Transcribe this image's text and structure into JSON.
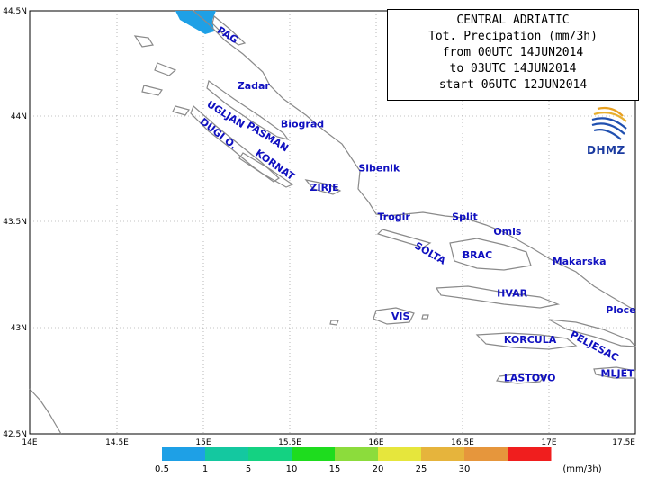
{
  "title": {
    "line1": "CENTRAL ADRIATIC",
    "line2": "Tot. Precipation (mm/3h)",
    "line3": "from 00UTC 14JUN2014",
    "line4": "to 03UTC 14JUN2014",
    "line5": "start 06UTC 12JUN2014"
  },
  "logo": {
    "text": "DHMZ"
  },
  "axes": {
    "x_ticks": [
      "14E",
      "14.5E",
      "15E",
      "15.5E",
      "16E",
      "16.5E",
      "17E",
      "17.5E"
    ],
    "y_ticks": [
      "44.5N",
      "44N",
      "43.5N",
      "43N",
      "42.5N"
    ]
  },
  "places": [
    {
      "name": "PAG",
      "lon": 15.08,
      "lat": 44.4
    },
    {
      "name": "Zadar",
      "lon": 15.2,
      "lat": 44.13
    },
    {
      "name": "UGLJAN",
      "lon": 15.02,
      "lat": 44.05
    },
    {
      "name": "PASMAN",
      "lon": 15.25,
      "lat": 43.95
    },
    {
      "name": "Biograd",
      "lon": 15.45,
      "lat": 43.95
    },
    {
      "name": "DUGI O.",
      "lon": 14.98,
      "lat": 43.97
    },
    {
      "name": "KORNAT",
      "lon": 15.3,
      "lat": 43.82
    },
    {
      "name": "Sibenik",
      "lon": 15.9,
      "lat": 43.74
    },
    {
      "name": "ZIRJE",
      "lon": 15.62,
      "lat": 43.65
    },
    {
      "name": "Trogir",
      "lon": 16.01,
      "lat": 43.51
    },
    {
      "name": "Split",
      "lon": 16.44,
      "lat": 43.51
    },
    {
      "name": "Omis",
      "lon": 16.68,
      "lat": 43.44
    },
    {
      "name": "SOLTA",
      "lon": 16.22,
      "lat": 43.38
    },
    {
      "name": "BRAC",
      "lon": 16.5,
      "lat": 43.33
    },
    {
      "name": "Makarska",
      "lon": 17.02,
      "lat": 43.3
    },
    {
      "name": "HVAR",
      "lon": 16.7,
      "lat": 43.15
    },
    {
      "name": "Ploce",
      "lon": 17.33,
      "lat": 43.07
    },
    {
      "name": "VIS",
      "lon": 16.09,
      "lat": 43.04
    },
    {
      "name": "PELJESAC",
      "lon": 17.12,
      "lat": 42.96
    },
    {
      "name": "KORCULA",
      "lon": 16.74,
      "lat": 42.93
    },
    {
      "name": "LASTOVO",
      "lon": 16.74,
      "lat": 42.75
    },
    {
      "name": "MLJET",
      "lon": 17.3,
      "lat": 42.77
    }
  ],
  "legend": {
    "unit": "(mm/3h)",
    "labels": [
      "0.5",
      "1",
      "5",
      "10",
      "15",
      "20",
      "25",
      "30"
    ],
    "colors": [
      "#1ea0e6",
      "#14c8a0",
      "#14d282",
      "#1edc1e",
      "#8cdc3c",
      "#e6e63c",
      "#e6b43c",
      "#e6963c",
      "#f01e1e"
    ]
  },
  "precip_area": {
    "color": "#1ea0e6",
    "lon_range": [
      14.8,
      15.07
    ],
    "lat_range": [
      44.4,
      44.5
    ],
    "value_class": "0.5-1"
  }
}
